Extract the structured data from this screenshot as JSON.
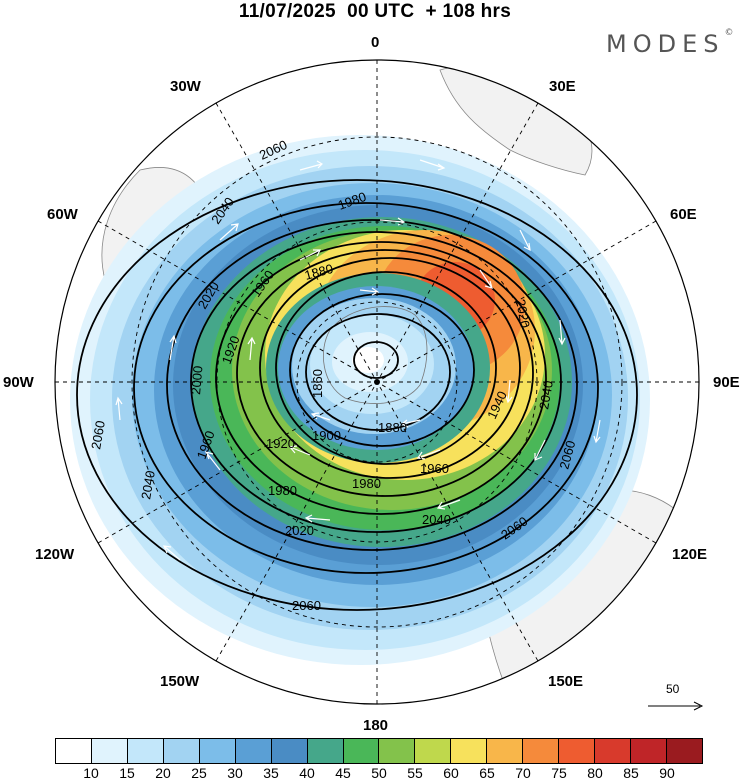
{
  "header": {
    "title": "11/07/2025  00 UTC  + 108 hrs",
    "brand": "MODES",
    "brand_mark": "©"
  },
  "map": {
    "projection": "south polar stereographic",
    "longitude_labels": {
      "top": "0",
      "bottom": "180",
      "left": "90W",
      "right": "90E",
      "upper_left_30": "30W",
      "upper_right_30": "30E",
      "upper_left_60": "60W",
      "upper_right_60": "60E",
      "lower_left_120": "120W",
      "lower_right_120": "120E",
      "lower_left_150": "150W",
      "lower_right_150": "150E"
    },
    "contour_labels": [
      "2060",
      "2060",
      "2060",
      "2060",
      "2060",
      "2040",
      "2040",
      "2040",
      "2040",
      "2020",
      "2020",
      "2020",
      "2000",
      "1980",
      "1980",
      "1980",
      "1960",
      "1960",
      "1960",
      "1940",
      "1920",
      "1920",
      "1900",
      "1880",
      "1880",
      "1860"
    ],
    "reference_vector": "50"
  },
  "colorbar": {
    "ticks": [
      "10",
      "15",
      "20",
      "25",
      "30",
      "35",
      "40",
      "45",
      "50",
      "55",
      "60",
      "65",
      "70",
      "75",
      "80",
      "85",
      "90"
    ],
    "colors": [
      "#ffffff",
      "#e0f3fd",
      "#c3e7fa",
      "#a2d3f2",
      "#7cbde9",
      "#5a9fd5",
      "#4a8cc4",
      "#45a78a",
      "#4ab758",
      "#83c24b",
      "#bfd84c",
      "#f7e15c",
      "#f8b64a",
      "#f58a3b",
      "#ee5c30",
      "#d83a2c",
      "#bf2528",
      "#9a1b1f"
    ]
  }
}
